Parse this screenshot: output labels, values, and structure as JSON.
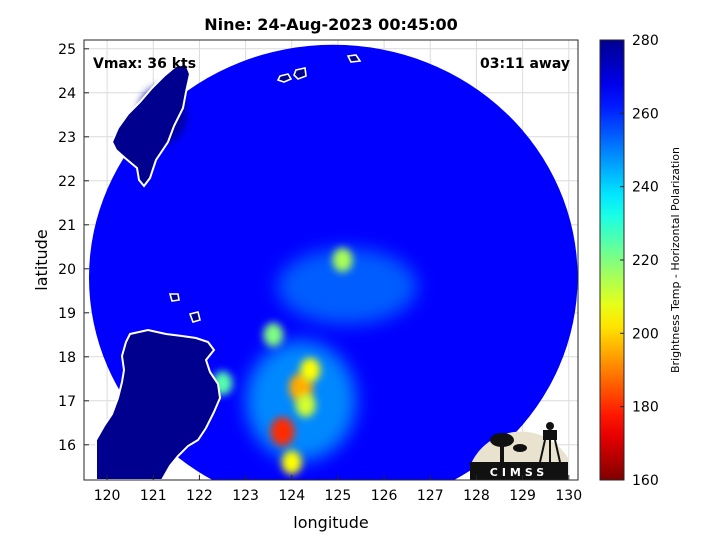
{
  "figure": {
    "title": "Nine: 24-Aug-2023 00:45:00",
    "vmax_label": "Vmax: 36 kts",
    "time_away": "03:11 away",
    "xlabel": "longitude",
    "ylabel": "latitude",
    "colorbar_label": "Brightness Temp - Horizontal Polarization",
    "logo_text": "CIMSS"
  },
  "axes": {
    "xlim": [
      119.5,
      130.2
    ],
    "ylim": [
      15.2,
      25.2
    ],
    "xticks": [
      "120",
      "121",
      "122",
      "123",
      "124",
      "125",
      "126",
      "127",
      "128",
      "129",
      "130"
    ],
    "yticks": [
      "16",
      "17",
      "18",
      "19",
      "20",
      "21",
      "22",
      "23",
      "24",
      "25"
    ]
  },
  "colorbar": {
    "range": [
      160,
      280
    ],
    "ticks": [
      "280",
      "260",
      "240",
      "220",
      "200",
      "180",
      "160"
    ],
    "colormap": [
      "#00008f",
      "#0000ff",
      "#00ffff",
      "#ffff00",
      "#ff0000",
      "#800000"
    ]
  },
  "chart_data": {
    "type": "heatmap",
    "title": "Nine: 24-Aug-2023 00:45:00",
    "xlabel": "longitude",
    "ylabel": "latitude",
    "xlim": [
      119.5,
      130.2
    ],
    "ylim": [
      15.2,
      25.2
    ],
    "value_range": [
      160,
      280
    ],
    "background_value": 265,
    "swath": {
      "center_lon": 124.9,
      "center_lat": 19.8,
      "radius_deg": 5.4
    },
    "features": [
      {
        "lon": 123.8,
        "lat": 16.3,
        "value": 180
      },
      {
        "lon": 124.2,
        "lat": 17.3,
        "value": 195
      },
      {
        "lon": 124.4,
        "lat": 17.7,
        "value": 205
      },
      {
        "lon": 124.0,
        "lat": 15.6,
        "value": 205
      },
      {
        "lon": 125.1,
        "lat": 20.2,
        "value": 215
      },
      {
        "lon": 123.6,
        "lat": 18.5,
        "value": 220
      },
      {
        "lon": 122.5,
        "lat": 17.4,
        "value": 225
      },
      {
        "lon": 124.3,
        "lat": 16.9,
        "value": 210
      },
      {
        "lon": 121.2,
        "lat": 23.5,
        "value": 278
      },
      {
        "lon": 121.0,
        "lat": 17.5,
        "value": 278
      }
    ]
  }
}
